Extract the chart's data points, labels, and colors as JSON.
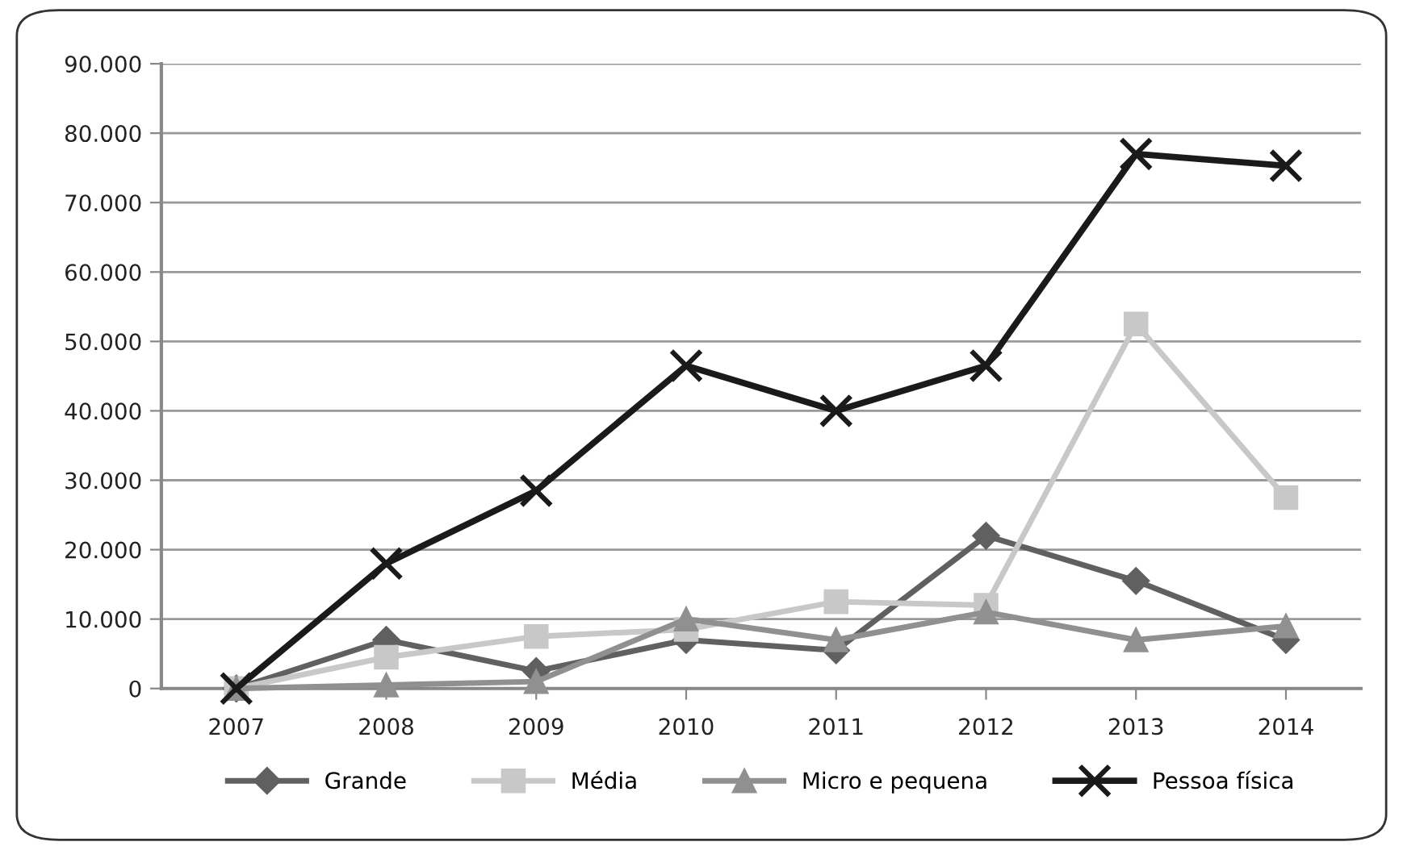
{
  "chart_data": {
    "type": "line",
    "categories": [
      "2007",
      "2008",
      "2009",
      "2010",
      "2011",
      "2012",
      "2013",
      "2014"
    ],
    "series": [
      {
        "name": "Grande",
        "color": "#606060",
        "marker": "diamond",
        "values": [
          0,
          7000,
          2500,
          7000,
          5500,
          22000,
          15500,
          7000
        ]
      },
      {
        "name": "Média",
        "color": "#c8c8c8",
        "marker": "square",
        "values": [
          0,
          4500,
          7500,
          8500,
          12500,
          12000,
          52500,
          27500
        ]
      },
      {
        "name": "Micro e pequena",
        "color": "#909090",
        "marker": "triangle",
        "values": [
          0,
          500,
          1000,
          10000,
          7000,
          11000,
          7000,
          9000
        ]
      },
      {
        "name": "Pessoa física",
        "color": "#1a1a1a",
        "marker": "cross",
        "values": [
          0,
          18000,
          28500,
          46500,
          40000,
          46500,
          77000,
          75300
        ]
      }
    ],
    "ylim": [
      0,
      90000
    ],
    "yticks": [
      {
        "value": 0,
        "label": "0"
      },
      {
        "value": 10000,
        "label": "10.000"
      },
      {
        "value": 20000,
        "label": "20.000"
      },
      {
        "value": 30000,
        "label": "30.000"
      },
      {
        "value": 40000,
        "label": "40.000"
      },
      {
        "value": 50000,
        "label": "50.000"
      },
      {
        "value": 60000,
        "label": "60.000"
      },
      {
        "value": 70000,
        "label": "70.000"
      },
      {
        "value": 80000,
        "label": "80.000"
      },
      {
        "value": 90000,
        "label": "90.000"
      }
    ],
    "grid": "y",
    "legend": "bottom",
    "line_style": "solid"
  }
}
